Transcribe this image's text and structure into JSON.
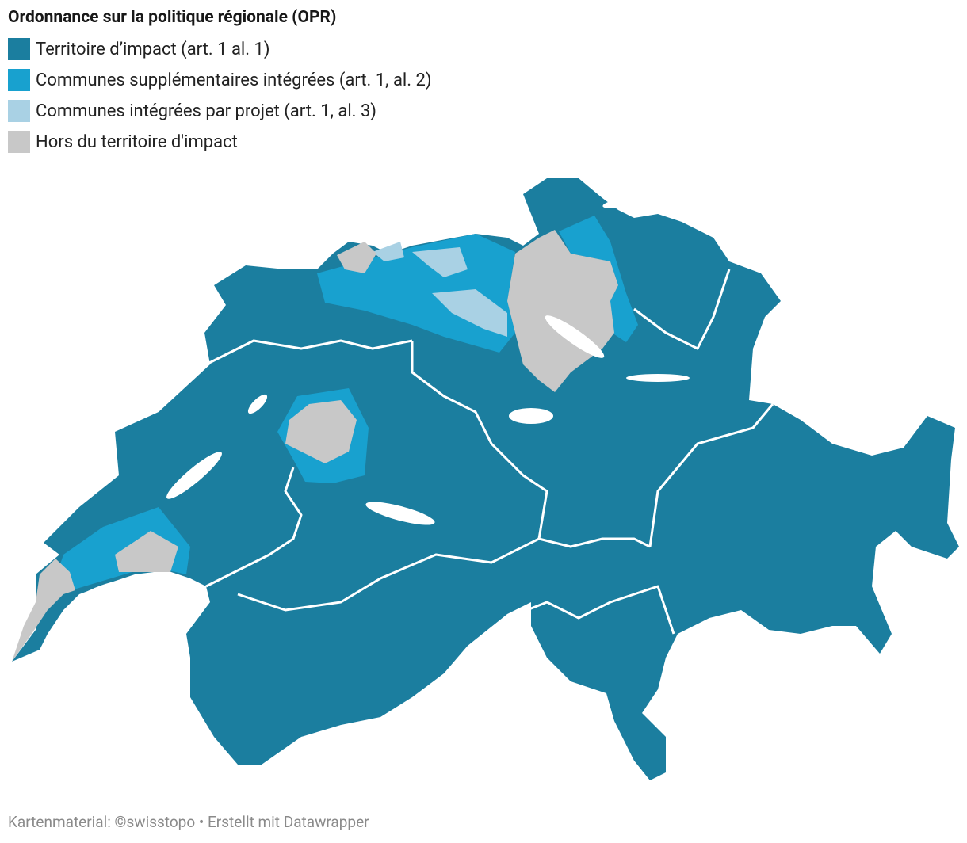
{
  "title": "Ordonnance sur la politique régionale (OPR)",
  "legend": [
    {
      "label": "Territoire d’impact (art. 1 al. 1)",
      "color": "#1b7e9f"
    },
    {
      "label": "Communes supplémentaires intégrées (art. 1, al. 2)",
      "color": "#18a1cf"
    },
    {
      "label": "Communes intégrées par projet (art. 1, al. 3)",
      "color": "#a9d1e4"
    },
    {
      "label": "Hors du territoire d'impact",
      "color": "#c8c8c8"
    }
  ],
  "footer": "Kartenmaterial: ©swisstopo • Erstellt mit Datawrapper"
}
